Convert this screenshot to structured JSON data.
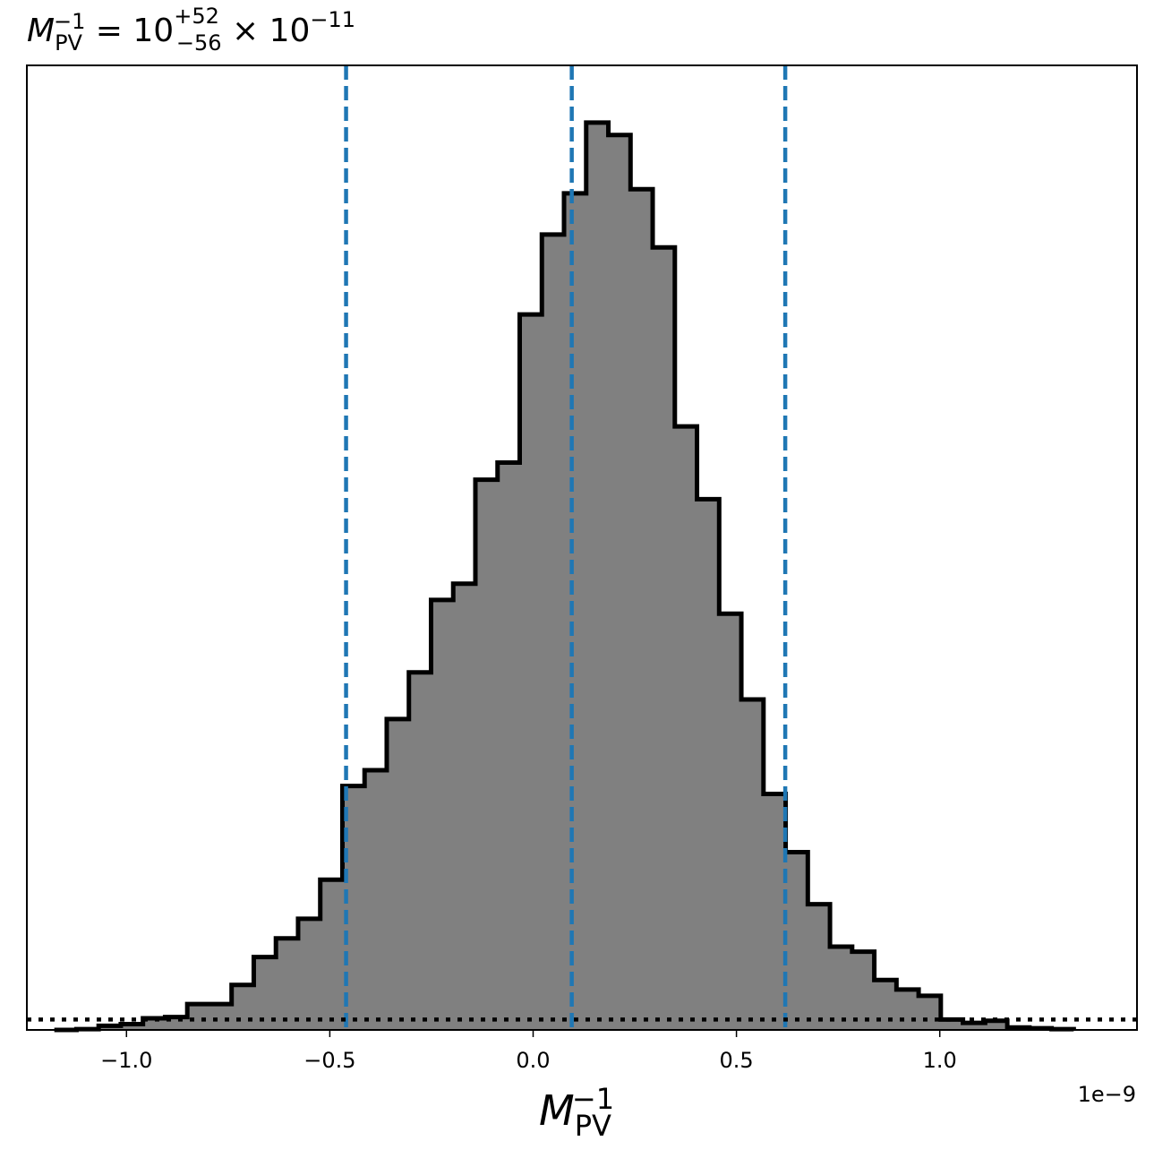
{
  "chart_data": {
    "type": "histogram",
    "title": {
      "symbol": "M",
      "subscript": "PV",
      "superscript": "−1",
      "equals": " = ",
      "value": "10",
      "upper": "+52",
      "lower": "−56",
      "times": " × 10",
      "exponent": "−11"
    },
    "xlabel": {
      "symbol": "M",
      "subscript": "PV",
      "superscript": "−1"
    },
    "x_offset_label": "1e−9",
    "xlim": [
      -1.245,
      1.485
    ],
    "ylim": [
      0,
      1063
    ],
    "x_ticks": [
      -1.0,
      -0.5,
      0.0,
      0.5,
      1.0
    ],
    "x_tick_labels": [
      "−1.0",
      "−0.5",
      "0.0",
      "0.5",
      "1.0"
    ],
    "bins": {
      "start": -1.1775,
      "width": 0.0545,
      "counts": [
        0,
        2,
        10,
        14,
        28,
        31,
        62,
        62,
        108,
        175,
        220,
        267,
        361,
        586,
        624,
        747,
        859,
        1033,
        1072,
        1322,
        1363,
        1719,
        1911,
        2010,
        2180,
        2150,
        2020,
        1880,
        1450,
        1275,
        1000,
        794,
        567,
        427,
        302,
        200,
        188,
        120,
        97,
        82,
        25,
        17,
        22,
        6,
        4,
        2
      ]
    },
    "reference_lines": {
      "color": "#1f77b4",
      "style": "dashed",
      "values": [
        -0.46,
        0.095,
        0.62
      ]
    },
    "prior_line": {
      "color": "#000000",
      "style": "dotted",
      "level": 25
    },
    "colors": {
      "fill": "#808080",
      "edge": "#000000"
    },
    "grid": false,
    "legend": "none"
  }
}
